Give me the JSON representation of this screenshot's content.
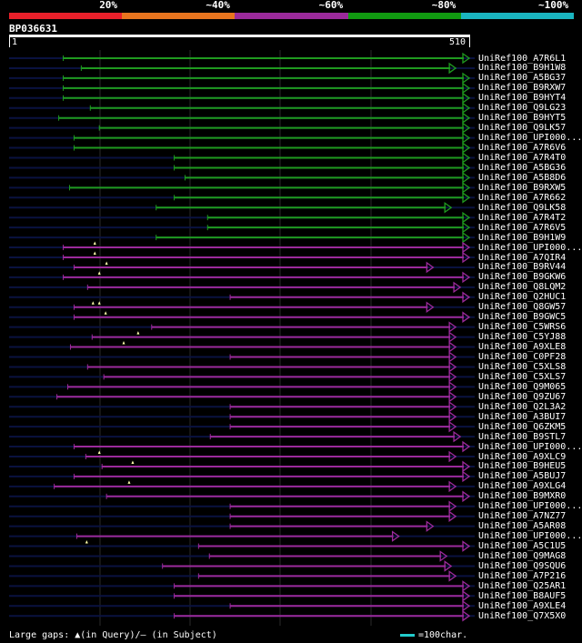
{
  "legend": {
    "bins": [
      {
        "label": "20%",
        "color": "#e8202a"
      },
      {
        "label": "~40%",
        "color": "#e8741e"
      },
      {
        "label": "~60%",
        "color": "#9b2a9b"
      },
      {
        "label": "~80%",
        "color": "#119a11"
      },
      {
        "label": "~100%",
        "color": "#1ab5c0"
      }
    ]
  },
  "query": {
    "id": "BP036631",
    "start": "1",
    "end": "510",
    "length": 510
  },
  "colors": {
    "green": "#1f9a1f",
    "purple": "#9b2a9b",
    "navy": "#0a1240",
    "grid": "#2a2a2a",
    "gap": "#ffffaa"
  },
  "hits": [
    {
      "name": "UniRef100_A7R6L1",
      "color": "green",
      "qs": 60,
      "qe": 510,
      "cs": 0
    },
    {
      "name": "UniRef100_B9H1W8",
      "color": "green",
      "qs": 80,
      "qe": 495,
      "cs": 0
    },
    {
      "name": "UniRef100_A5BG37",
      "color": "green",
      "qs": 60,
      "qe": 510,
      "cs": 0
    },
    {
      "name": "UniRef100_B9RXW7",
      "color": "green",
      "qs": 60,
      "qe": 510,
      "cs": 0
    },
    {
      "name": "UniRef100_B9HYT4",
      "color": "green",
      "qs": 60,
      "qe": 510,
      "cs": 0
    },
    {
      "name": "UniRef100_Q9LG23",
      "color": "green",
      "qs": 90,
      "qe": 510,
      "cs": 0
    },
    {
      "name": "UniRef100_B9HYT5",
      "color": "green",
      "qs": 55,
      "qe": 510,
      "cs": 0
    },
    {
      "name": "UniRef100_Q9LK57",
      "color": "green",
      "qs": 100,
      "qe": 510,
      "cs": 0
    },
    {
      "name": "UniRef100_UPI000...",
      "color": "green",
      "qs": 72,
      "qe": 510,
      "cs": 0
    },
    {
      "name": "UniRef100_A7R6V6",
      "color": "green",
      "qs": 72,
      "qe": 510,
      "cs": 0
    },
    {
      "name": "UniRef100_A7R4T0",
      "color": "green",
      "qs": 183,
      "qe": 510,
      "cs": 0
    },
    {
      "name": "UniRef100_A5BG36",
      "color": "green",
      "qs": 183,
      "qe": 510,
      "cs": 0
    },
    {
      "name": "UniRef100_A5B8D6",
      "color": "green",
      "qs": 195,
      "qe": 510,
      "cs": 0
    },
    {
      "name": "UniRef100_B9RXW5",
      "color": "green",
      "qs": 67,
      "qe": 510,
      "cs": 0
    },
    {
      "name": "UniRef100_A7R662",
      "color": "green",
      "qs": 183,
      "qe": 510,
      "cs": 0
    },
    {
      "name": "UniRef100_Q9LK58",
      "color": "green",
      "qs": 163,
      "qe": 490,
      "cs": 0
    },
    {
      "name": "UniRef100_A7R4T2",
      "color": "green",
      "qs": 220,
      "qe": 510,
      "cs": 0
    },
    {
      "name": "UniRef100_A7R6V5",
      "color": "green",
      "qs": 220,
      "qe": 510,
      "cs": 0
    },
    {
      "name": "UniRef100_B9H1W9",
      "color": "green",
      "qs": 163,
      "qe": 510,
      "cs": 0
    },
    {
      "name": "UniRef100_UPI000...",
      "color": "purple",
      "qs": 60,
      "qe": 510,
      "cs": 0
    },
    {
      "name": "UniRef100_A7QIR4",
      "color": "purple",
      "qs": 60,
      "qe": 510,
      "cs": 0
    },
    {
      "name": "UniRef100_B9RV44",
      "color": "purple",
      "qs": 72,
      "qe": 470,
      "cs": 0
    },
    {
      "name": "UniRef100_B9GKW6",
      "color": "purple",
      "qs": 60,
      "qe": 510,
      "cs": 0
    },
    {
      "name": "UniRef100_Q8LQM2",
      "color": "purple",
      "qs": 87,
      "qe": 500,
      "cs": 0
    },
    {
      "name": "UniRef100_Q2HUC1",
      "color": "purple",
      "qs": 245,
      "qe": 510,
      "cs": 0
    },
    {
      "name": "UniRef100_Q8GW57",
      "color": "purple",
      "qs": 72,
      "qe": 470,
      "cs": 0
    },
    {
      "name": "UniRef100_B9GWC5",
      "color": "purple",
      "qs": 72,
      "qe": 510,
      "cs": 0
    },
    {
      "name": "UniRef100_C5WRS6",
      "color": "purple",
      "qs": 158,
      "qe": 495,
      "cs": 0
    },
    {
      "name": "UniRef100_C5YJ88",
      "color": "purple",
      "qs": 92,
      "qe": 495,
      "cs": 0
    },
    {
      "name": "UniRef100_A9XLE8",
      "color": "purple",
      "qs": 68,
      "qe": 495,
      "cs": 0
    },
    {
      "name": "UniRef100_C0PF28",
      "color": "purple",
      "qs": 245,
      "qe": 495,
      "cs": 0
    },
    {
      "name": "UniRef100_C5XLS8",
      "color": "purple",
      "qs": 87,
      "qe": 495,
      "cs": 0
    },
    {
      "name": "UniRef100_C5XLS7",
      "color": "purple",
      "qs": 105,
      "qe": 495,
      "cs": 0
    },
    {
      "name": "UniRef100_Q9M065",
      "color": "purple",
      "qs": 65,
      "qe": 495,
      "cs": 0
    },
    {
      "name": "UniRef100_Q9ZU67",
      "color": "purple",
      "qs": 53,
      "qe": 495,
      "cs": 0
    },
    {
      "name": "UniRef100_Q2L3A2",
      "color": "purple",
      "qs": 245,
      "qe": 495,
      "cs": 0
    },
    {
      "name": "UniRef100_A3BUI7",
      "color": "purple",
      "qs": 245,
      "qe": 495,
      "cs": 0
    },
    {
      "name": "UniRef100_Q6ZKM5",
      "color": "purple",
      "qs": 245,
      "qe": 495,
      "cs": 0
    },
    {
      "name": "UniRef100_B9STL7",
      "color": "purple",
      "qs": 223,
      "qe": 500,
      "cs": 0
    },
    {
      "name": "UniRef100_UPI000...",
      "color": "purple",
      "qs": 72,
      "qe": 510,
      "cs": 0
    },
    {
      "name": "UniRef100_A9XLC9",
      "color": "purple",
      "qs": 85,
      "qe": 495,
      "cs": 0
    },
    {
      "name": "UniRef100_B9HEU5",
      "color": "purple",
      "qs": 103,
      "qe": 510,
      "cs": 0
    },
    {
      "name": "UniRef100_A5BUJ7",
      "color": "purple",
      "qs": 72,
      "qe": 510,
      "cs": 0
    },
    {
      "name": "UniRef100_A9XLG4",
      "color": "purple",
      "qs": 50,
      "qe": 495,
      "cs": 0
    },
    {
      "name": "UniRef100_B9MXR0",
      "color": "purple",
      "qs": 108,
      "qe": 510,
      "cs": 0
    },
    {
      "name": "UniRef100_UPI000...",
      "color": "purple",
      "qs": 245,
      "qe": 495,
      "cs": 0
    },
    {
      "name": "UniRef100_A7NZ77",
      "color": "purple",
      "qs": 245,
      "qe": 495,
      "cs": 0
    },
    {
      "name": "UniRef100_A5AR08",
      "color": "purple",
      "qs": 245,
      "qe": 470,
      "cs": 0
    },
    {
      "name": "UniRef100_UPI000...",
      "color": "purple",
      "qs": 75,
      "qe": 432,
      "cs": 0
    },
    {
      "name": "UniRef100_A5C1U5",
      "color": "purple",
      "qs": 210,
      "qe": 510,
      "cs": 0
    },
    {
      "name": "UniRef100_Q9MAG8",
      "color": "purple",
      "qs": 222,
      "qe": 485,
      "cs": 0
    },
    {
      "name": "UniRef100_Q9SQU6",
      "color": "purple",
      "qs": 170,
      "qe": 490,
      "cs": 0
    },
    {
      "name": "UniRef100_A7P216",
      "color": "purple",
      "qs": 210,
      "qe": 495,
      "cs": 0
    },
    {
      "name": "UniRef100_Q25AR1",
      "color": "purple",
      "qs": 183,
      "qe": 510,
      "cs": 0
    },
    {
      "name": "UniRef100_B8AUF5",
      "color": "purple",
      "qs": 183,
      "qe": 510,
      "cs": 0
    },
    {
      "name": "UniRef100_A9XLE4",
      "color": "purple",
      "qs": 245,
      "qe": 510,
      "cs": 0
    },
    {
      "name": "UniRef100_Q7X5X0",
      "color": "purple",
      "qs": 183,
      "qe": 510,
      "cs": 0
    }
  ],
  "gap_marks": [
    {
      "row": 19,
      "pos": 95
    },
    {
      "row": 20,
      "pos": 95
    },
    {
      "row": 21,
      "pos": 108
    },
    {
      "row": 22,
      "pos": 100
    },
    {
      "row": 25,
      "pos": 93
    },
    {
      "row": 25,
      "pos": 100
    },
    {
      "row": 26,
      "pos": 107
    },
    {
      "row": 28,
      "pos": 143
    },
    {
      "row": 29,
      "pos": 127
    },
    {
      "row": 40,
      "pos": 100
    },
    {
      "row": 41,
      "pos": 137
    },
    {
      "row": 43,
      "pos": 133
    },
    {
      "row": 49,
      "pos": 86
    }
  ],
  "footer": {
    "text": "Large gaps: ▲(in Query)/– (in Subject)"
  },
  "scale": {
    "text": "=100char."
  }
}
